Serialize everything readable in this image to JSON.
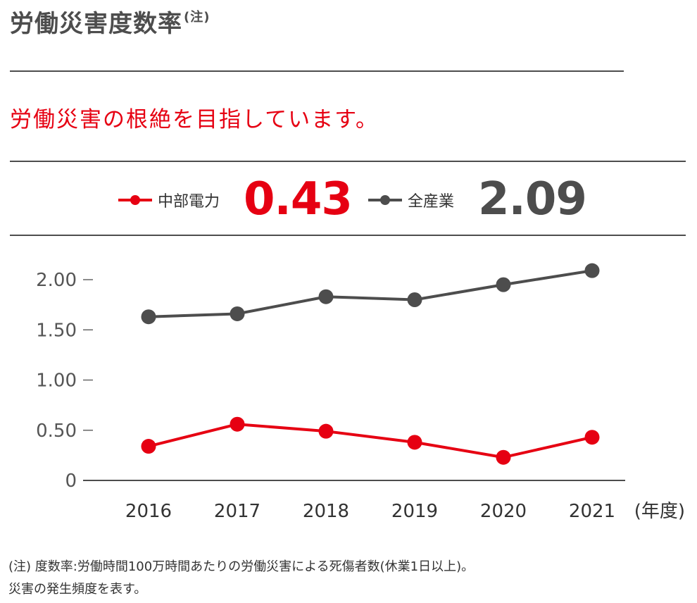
{
  "title": "労働災害度数率",
  "title_note_mark": "(注)",
  "subtitle": "労働災害の根絶を目指しています。",
  "legend": [
    {
      "name": "中部電力",
      "value": "0.43",
      "color": "#e60012"
    },
    {
      "name": "全産業",
      "value": "2.09",
      "color": "#4d4d4d"
    }
  ],
  "chart_data": {
    "type": "line",
    "x": [
      "2016",
      "2017",
      "2018",
      "2019",
      "2020",
      "2021"
    ],
    "xlabel": "(年度)",
    "ylabel": "",
    "ylim": [
      0,
      2.3
    ],
    "yticks": [
      0,
      0.5,
      1.0,
      1.5,
      2.0
    ],
    "ytick_labels": [
      "0",
      "0.50",
      "1.00",
      "1.50",
      "2.00"
    ],
    "grid": false,
    "series": [
      {
        "name": "中部電力",
        "color": "#e60012",
        "values": [
          0.34,
          0.56,
          0.49,
          0.38,
          0.23,
          0.43
        ]
      },
      {
        "name": "全産業",
        "color": "#4d4d4d",
        "values": [
          1.63,
          1.66,
          1.83,
          1.8,
          1.95,
          2.09
        ]
      }
    ]
  },
  "footnote": {
    "line1": "(注) 度数率:労働時間100万時間あたりの労働災害による死傷者数(休業1日以上)。",
    "line2": "災害の発生頻度を表す。"
  }
}
